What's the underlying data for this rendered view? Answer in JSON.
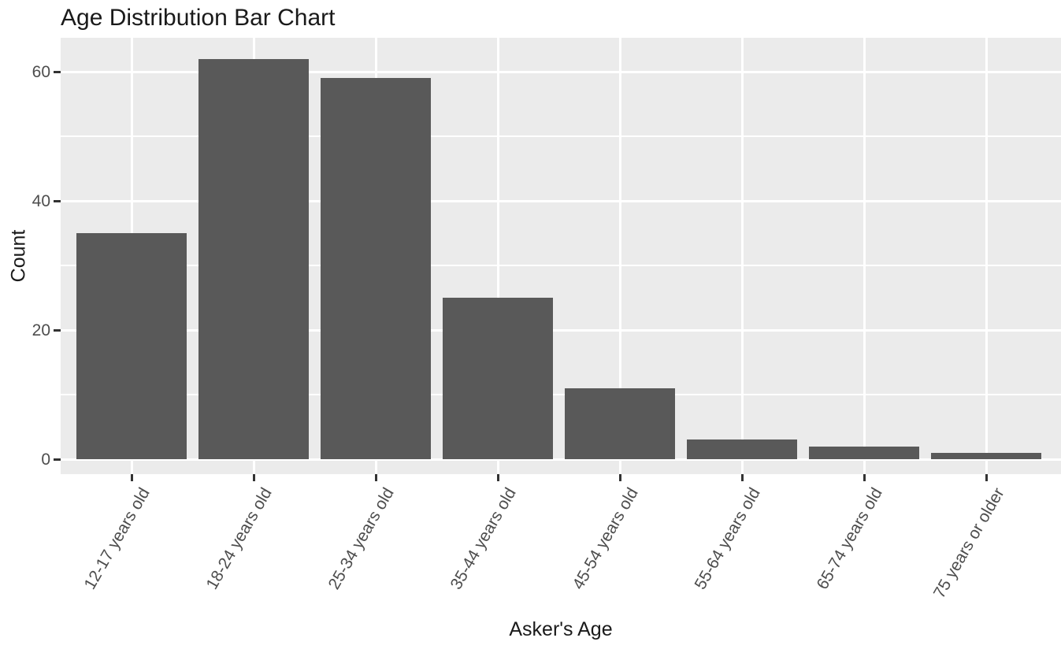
{
  "chart_data": {
    "type": "bar",
    "title": "Age Distribution Bar Chart",
    "xlabel": "Asker's Age",
    "ylabel": "Count",
    "categories": [
      "12-17 years old",
      "18-24 years old",
      "25-34 years old",
      "35-44 years old",
      "45-54 years old",
      "55-64 years old",
      "65-74 years old",
      "75 years or older"
    ],
    "values": [
      35,
      62,
      59,
      25,
      11,
      3,
      2,
      1
    ],
    "yticks": [
      0,
      20,
      40,
      60
    ],
    "yticks_minor": [
      10,
      30,
      50
    ],
    "ylim": [
      0,
      65
    ],
    "grid": "on",
    "legend": "none",
    "colors": {
      "bar_fill": "#595959",
      "panel_background": "#EBEBEB",
      "grid_line": "#FFFFFF",
      "title_text": "#1a1a1a",
      "tick_text": "#4d4d4d",
      "tick_mark": "#333333"
    }
  }
}
